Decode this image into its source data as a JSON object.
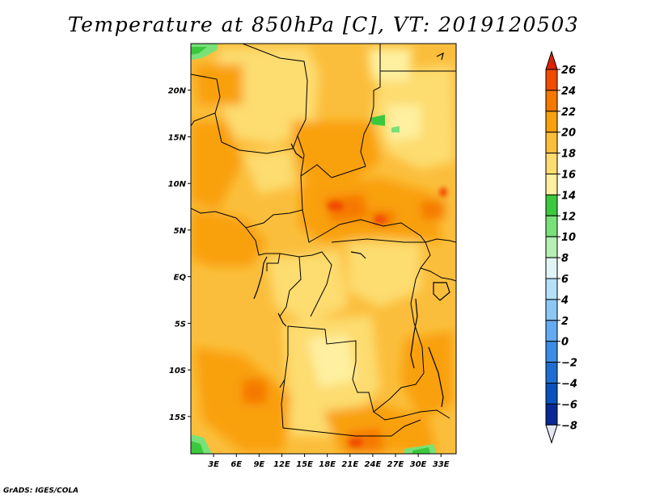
{
  "title": "Temperature at 850hPa [C], VT: 2019120503",
  "credit": "GrADS: IGES/COLA",
  "map": {
    "lat_range": [
      -19,
      25
    ],
    "lon_range": [
      0,
      35
    ],
    "lat_ticks": [
      {
        "value": 20,
        "label": "20N"
      },
      {
        "value": 15,
        "label": "15N"
      },
      {
        "value": 10,
        "label": "10N"
      },
      {
        "value": 5,
        "label": "5N"
      },
      {
        "value": 0,
        "label": "EQ"
      },
      {
        "value": -5,
        "label": "5S"
      },
      {
        "value": -10,
        "label": "10S"
      },
      {
        "value": -15,
        "label": "15S"
      }
    ],
    "lon_ticks": [
      {
        "value": 3,
        "label": "3E"
      },
      {
        "value": 6,
        "label": "6E"
      },
      {
        "value": 9,
        "label": "9E"
      },
      {
        "value": 12,
        "label": "12E"
      },
      {
        "value": 15,
        "label": "15E"
      },
      {
        "value": 18,
        "label": "18E"
      },
      {
        "value": 21,
        "label": "21E"
      },
      {
        "value": 24,
        "label": "24E"
      },
      {
        "value": 27,
        "label": "27E"
      },
      {
        "value": 30,
        "label": "30E"
      },
      {
        "value": 33,
        "label": "33E"
      }
    ]
  },
  "colorbar": {
    "levels": [
      {
        "label": "26"
      },
      {
        "label": "24"
      },
      {
        "label": "22"
      },
      {
        "label": "20"
      },
      {
        "label": "18"
      },
      {
        "label": "16"
      },
      {
        "label": "14"
      },
      {
        "label": "12"
      },
      {
        "label": "10"
      },
      {
        "label": "8"
      },
      {
        "label": "6"
      },
      {
        "label": "4"
      },
      {
        "label": "2"
      },
      {
        "label": "0"
      },
      {
        "label": "−2"
      },
      {
        "label": "−4"
      },
      {
        "label": "−6"
      },
      {
        "label": "−8"
      }
    ],
    "colors_top_to_bottom": [
      "#dc2200",
      "#f04c00",
      "#f57800",
      "#f9a00f",
      "#fbbe3c",
      "#fddc70",
      "#fef0a0",
      "#3cc83c",
      "#78e178",
      "#b4f0b4",
      "#e1f5f5",
      "#b4e1fa",
      "#8cc8f5",
      "#64aaf0",
      "#3c8ce6",
      "#1e6ed2",
      "#0a50be",
      "#0a2896",
      "#e6e6f5"
    ]
  }
}
